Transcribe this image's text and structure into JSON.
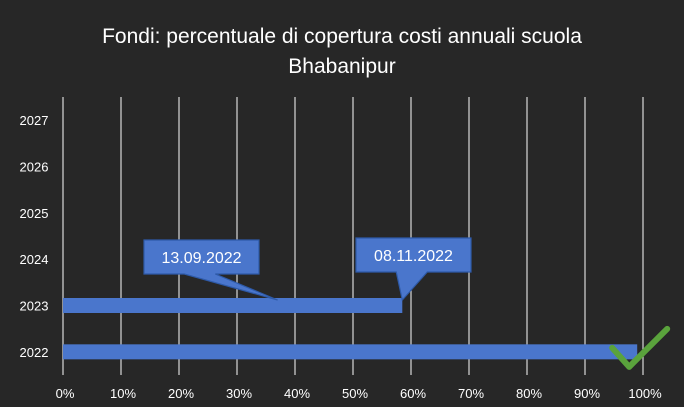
{
  "chart_data": {
    "type": "bar",
    "orientation": "horizontal",
    "title_lines": [
      "Fondi: percentuale di copertura costi annuali scuola",
      "Bhabanipur"
    ],
    "categories": [
      "2022",
      "2023",
      "2024",
      "2025",
      "2026",
      "2027"
    ],
    "values": [
      0.99,
      0.585,
      0,
      0,
      0,
      0
    ],
    "x_ticks": [
      "0%",
      "10%",
      "20%",
      "30%",
      "40%",
      "50%",
      "60%",
      "70%",
      "80%",
      "90%",
      "100%"
    ],
    "xlim": [
      0,
      1
    ],
    "grid": "vertical",
    "bar_color": "#4a76cc",
    "annotations": [
      {
        "text": "13.09.2022",
        "points_to_x": 0.37,
        "category": "2023"
      },
      {
        "text": "08.11.2022",
        "points_to_x": 0.585,
        "category": "2023"
      }
    ],
    "check_mark": {
      "icon": "check-icon",
      "color": "#5aa33c",
      "category": "2022",
      "x": 0.99
    }
  }
}
